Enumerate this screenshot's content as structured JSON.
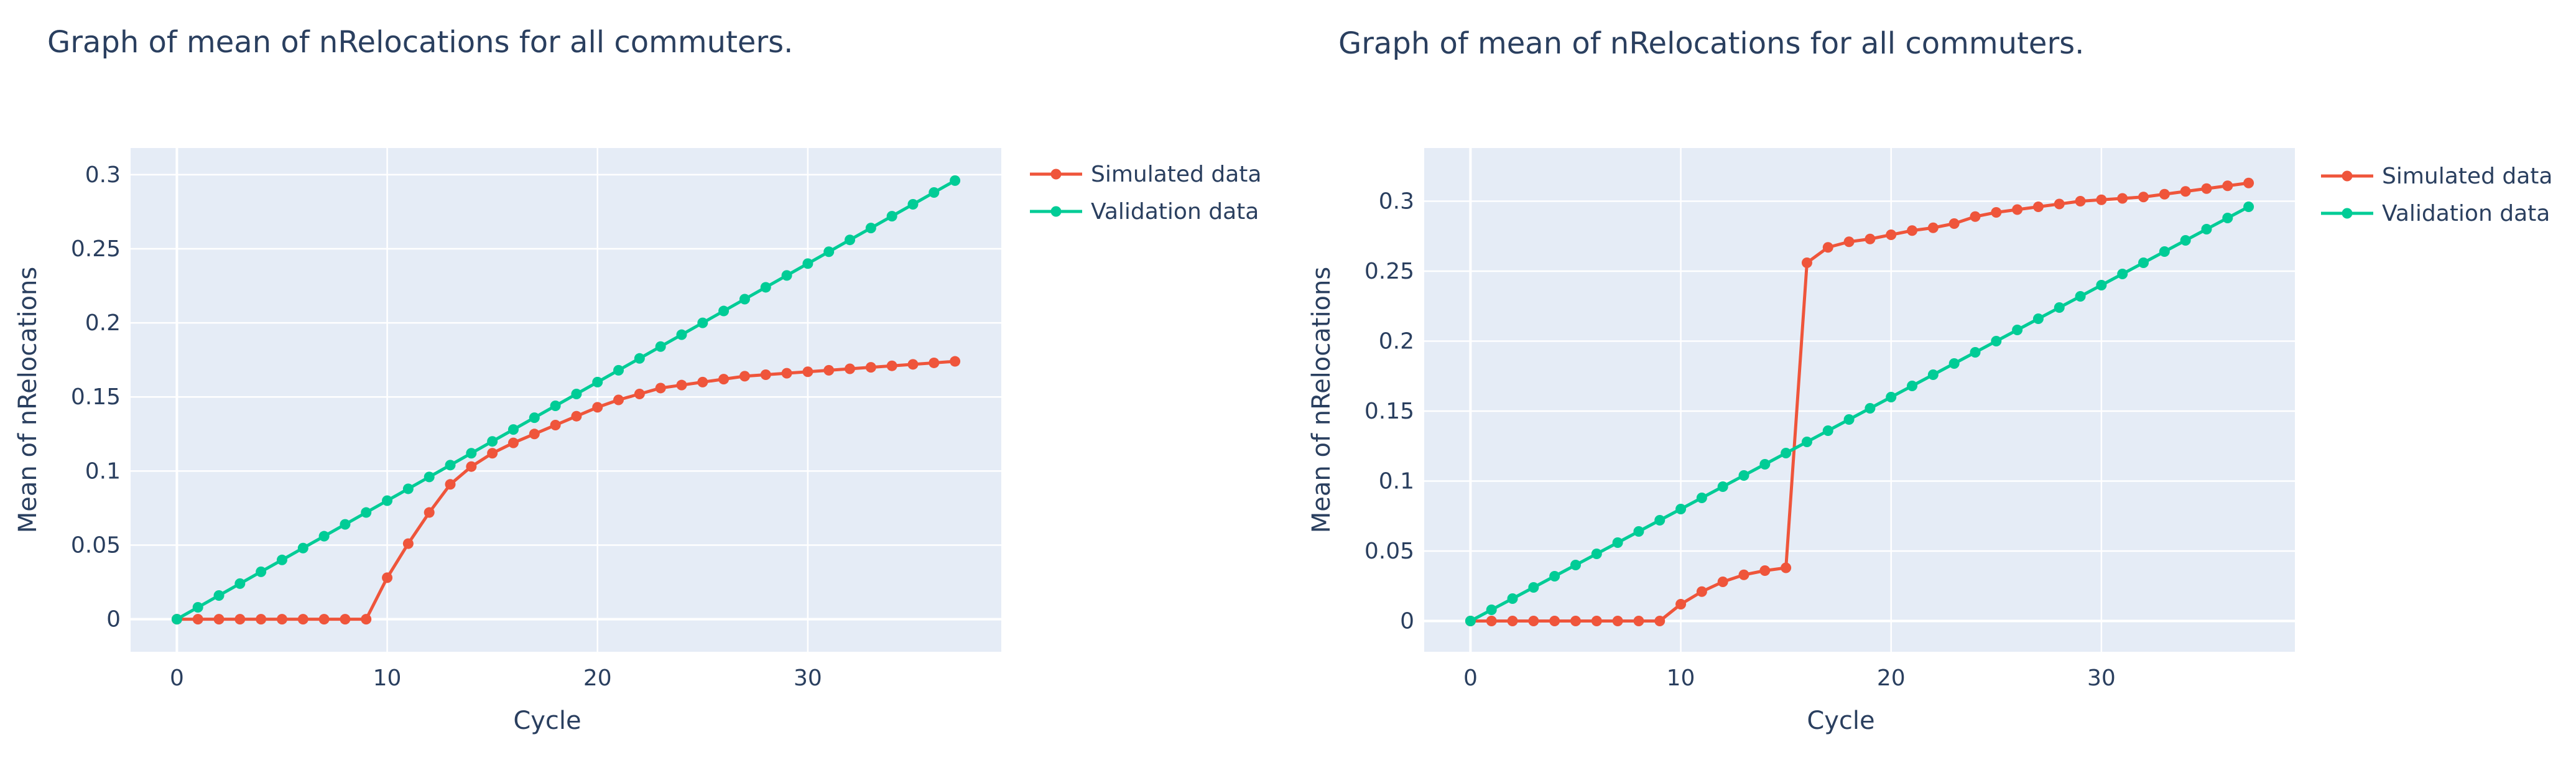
{
  "colors": {
    "simulated": "#ef553b",
    "validation": "#00cc96",
    "plot_bg": "#e5ecf6",
    "grid": "#ffffff",
    "text": "#2a3f5f"
  },
  "chart_data": [
    {
      "type": "line",
      "title": "Graph of mean of nRelocations for all commuters.",
      "xlabel": "Cycle",
      "ylabel": "Mean of nRelocations",
      "xlim": [
        -2.2,
        39.2
      ],
      "ylim": [
        -0.022,
        0.318
      ],
      "xticks": [
        0,
        10,
        20,
        30
      ],
      "xtick_labels": [
        "0",
        "10",
        "20",
        "30"
      ],
      "yticks": [
        0,
        0.05,
        0.1,
        0.15,
        0.2,
        0.25,
        0.3
      ],
      "ytick_labels": [
        "0",
        "0.05",
        "0.1",
        "0.15",
        "0.2",
        "0.25",
        "0.3"
      ],
      "grid": true,
      "legend": "top-right outside",
      "x": [
        0,
        1,
        2,
        3,
        4,
        5,
        6,
        7,
        8,
        9,
        10,
        11,
        12,
        13,
        14,
        15,
        16,
        17,
        18,
        19,
        20,
        21,
        22,
        23,
        24,
        25,
        26,
        27,
        28,
        29,
        30,
        31,
        32,
        33,
        34,
        35,
        36,
        37
      ],
      "series": [
        {
          "name": "Simulated data",
          "values": [
            0,
            0,
            0,
            0,
            0,
            0,
            0,
            0,
            0,
            0,
            0.028,
            0.051,
            0.072,
            0.091,
            0.103,
            0.112,
            0.119,
            0.125,
            0.131,
            0.137,
            0.143,
            0.148,
            0.152,
            0.156,
            0.158,
            0.16,
            0.162,
            0.164,
            0.165,
            0.166,
            0.167,
            0.168,
            0.169,
            0.17,
            0.171,
            0.172,
            0.173,
            0.174
          ]
        },
        {
          "name": "Validation data",
          "values": [
            0,
            0.008,
            0.016,
            0.024,
            0.032,
            0.04,
            0.048,
            0.056,
            0.064,
            0.072,
            0.08,
            0.088,
            0.096,
            0.104,
            0.112,
            0.12,
            0.128,
            0.136,
            0.144,
            0.152,
            0.16,
            0.168,
            0.176,
            0.184,
            0.192,
            0.2,
            0.208,
            0.216,
            0.224,
            0.232,
            0.24,
            0.248,
            0.256,
            0.264,
            0.272,
            0.28,
            0.288,
            0.296
          ]
        }
      ]
    },
    {
      "type": "line",
      "title": "Graph of mean of nRelocations for all commuters.",
      "xlabel": "Cycle",
      "ylabel": "Mean of nRelocations",
      "xlim": [
        -2.2,
        39.2
      ],
      "ylim": [
        -0.022,
        0.338
      ],
      "xticks": [
        0,
        10,
        20,
        30
      ],
      "xtick_labels": [
        "0",
        "10",
        "20",
        "30"
      ],
      "yticks": [
        0,
        0.05,
        0.1,
        0.15,
        0.2,
        0.25,
        0.3
      ],
      "ytick_labels": [
        "0",
        "0.05",
        "0.1",
        "0.15",
        "0.2",
        "0.25",
        "0.3"
      ],
      "grid": true,
      "legend": "top-right outside",
      "x": [
        0,
        1,
        2,
        3,
        4,
        5,
        6,
        7,
        8,
        9,
        10,
        11,
        12,
        13,
        14,
        15,
        16,
        17,
        18,
        19,
        20,
        21,
        22,
        23,
        24,
        25,
        26,
        27,
        28,
        29,
        30,
        31,
        32,
        33,
        34,
        35,
        36,
        37
      ],
      "series": [
        {
          "name": "Simulated data",
          "values": [
            0,
            0,
            0,
            0,
            0,
            0,
            0,
            0,
            0,
            0,
            0.012,
            0.021,
            0.028,
            0.033,
            0.036,
            0.038,
            0.256,
            0.267,
            0.271,
            0.273,
            0.276,
            0.279,
            0.281,
            0.284,
            0.289,
            0.292,
            0.294,
            0.296,
            0.298,
            0.3,
            0.301,
            0.302,
            0.303,
            0.305,
            0.307,
            0.309,
            0.311,
            0.313
          ]
        },
        {
          "name": "Validation data",
          "values": [
            0,
            0.008,
            0.016,
            0.024,
            0.032,
            0.04,
            0.048,
            0.056,
            0.064,
            0.072,
            0.08,
            0.088,
            0.096,
            0.104,
            0.112,
            0.12,
            0.128,
            0.136,
            0.144,
            0.152,
            0.16,
            0.168,
            0.176,
            0.184,
            0.192,
            0.2,
            0.208,
            0.216,
            0.224,
            0.232,
            0.24,
            0.248,
            0.256,
            0.264,
            0.272,
            0.28,
            0.288,
            0.296
          ]
        }
      ]
    }
  ]
}
